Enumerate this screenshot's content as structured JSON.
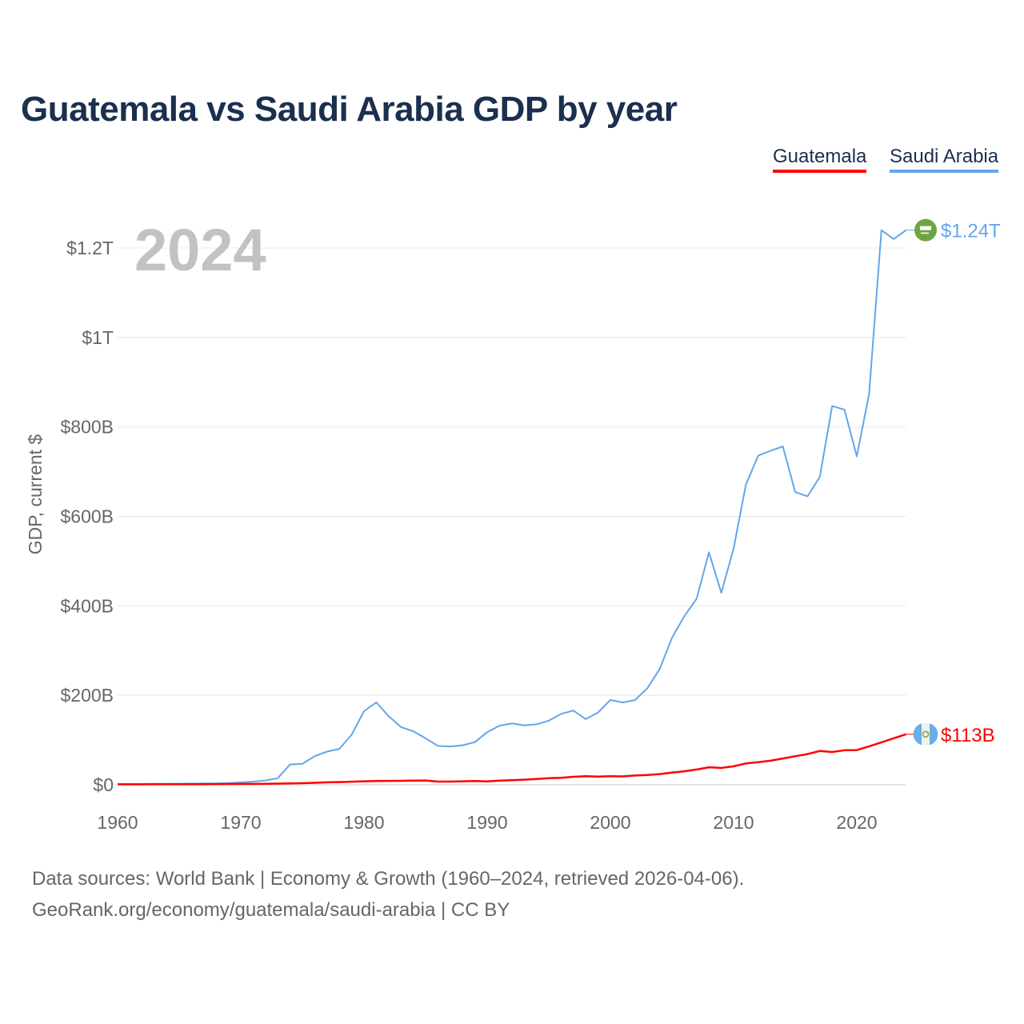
{
  "title": "Guatemala vs Saudi Arabia GDP by year",
  "legend": [
    "Guatemala",
    "Saudi Arabia"
  ],
  "year_label": "2024",
  "footer": {
    "line1": "Data sources: World Bank | Economy & Growth (1960–2024, retrieved 2026-04-06).",
    "line2": "GeoRank.org/economy/guatemala/saudi-arabia | CC BY"
  },
  "chart_data": {
    "type": "line",
    "title": "Guatemala vs Saudi Arabia GDP by year",
    "xlabel": "",
    "ylabel": "GDP, current $",
    "xlim": [
      1960,
      2024
    ],
    "ylim": [
      0,
      1300
    ],
    "unit": "billion USD",
    "grid": true,
    "legend_position": "top-right",
    "x_ticks": [
      1960,
      1970,
      1980,
      1990,
      2000,
      2010,
      2020
    ],
    "x_tick_labels": [
      "1960",
      "1970",
      "1980",
      "1990",
      "2000",
      "2010",
      "2020"
    ],
    "y_ticks": [
      0,
      200,
      400,
      600,
      800,
      1000,
      1200
    ],
    "y_tick_labels": [
      "$0",
      "$200B",
      "$400B",
      "$600B",
      "$800B",
      "$1T",
      "$1.2T"
    ],
    "x": [
      1960,
      1961,
      1962,
      1963,
      1964,
      1965,
      1966,
      1967,
      1968,
      1969,
      1970,
      1971,
      1972,
      1973,
      1974,
      1975,
      1976,
      1977,
      1978,
      1979,
      1980,
      1981,
      1982,
      1983,
      1984,
      1985,
      1986,
      1987,
      1988,
      1989,
      1990,
      1991,
      1992,
      1993,
      1994,
      1995,
      1996,
      1997,
      1998,
      1999,
      2000,
      2001,
      2002,
      2003,
      2004,
      2005,
      2006,
      2007,
      2008,
      2009,
      2010,
      2011,
      2012,
      2013,
      2014,
      2015,
      2016,
      2017,
      2018,
      2019,
      2020,
      2021,
      2022,
      2023,
      2024
    ],
    "series": [
      {
        "name": "Guatemala",
        "color": "#ff0000",
        "end_label": "$113B",
        "values": [
          1.0,
          1.1,
          1.1,
          1.2,
          1.3,
          1.3,
          1.4,
          1.5,
          1.6,
          1.8,
          1.9,
          2.0,
          2.1,
          2.6,
          3.1,
          3.6,
          4.4,
          5.5,
          6.1,
          6.9,
          7.9,
          8.6,
          8.7,
          9.0,
          9.5,
          9.7,
          7.2,
          7.1,
          7.8,
          8.4,
          7.6,
          9.4,
          10.4,
          11.4,
          12.9,
          14.7,
          15.8,
          17.8,
          19.4,
          18.3,
          19.3,
          18.7,
          20.8,
          21.9,
          23.9,
          27.2,
          30.2,
          34.1,
          39.1,
          37.7,
          41.3,
          47.7,
          50.4,
          53.9,
          58.8,
          63.8,
          68.7,
          75.6,
          73.3,
          77.2,
          77.6,
          86.0,
          95.0,
          104.0,
          113.0
        ]
      },
      {
        "name": "Saudi Arabia",
        "color": "#63a6ea",
        "end_label": "$1.24T",
        "values": [
          1.5,
          1.6,
          1.8,
          2.0,
          2.2,
          2.4,
          2.7,
          3.0,
          3.3,
          3.8,
          5.4,
          7.2,
          9.7,
          14.9,
          45.4,
          46.8,
          64.0,
          74.2,
          80.3,
          111.9,
          164.5,
          184.3,
          153.2,
          129.2,
          119.6,
          103.9,
          86.9,
          85.7,
          88.3,
          95.3,
          117.6,
          132.2,
          137.1,
          132.9,
          135.2,
          143.3,
          158.7,
          165.9,
          146.8,
          161.7,
          189.5,
          184.1,
          189.6,
          215.8,
          258.7,
          328.5,
          376.9,
          415.9,
          519.8,
          429.1,
          528.2,
          671.2,
          735.9,
          746.6,
          756.4,
          654.3,
          644.9,
          688.6,
          846.6,
          838.6,
          734.3,
          874.2,
          1240.0,
          1220.0,
          1240.0
        ]
      }
    ]
  }
}
